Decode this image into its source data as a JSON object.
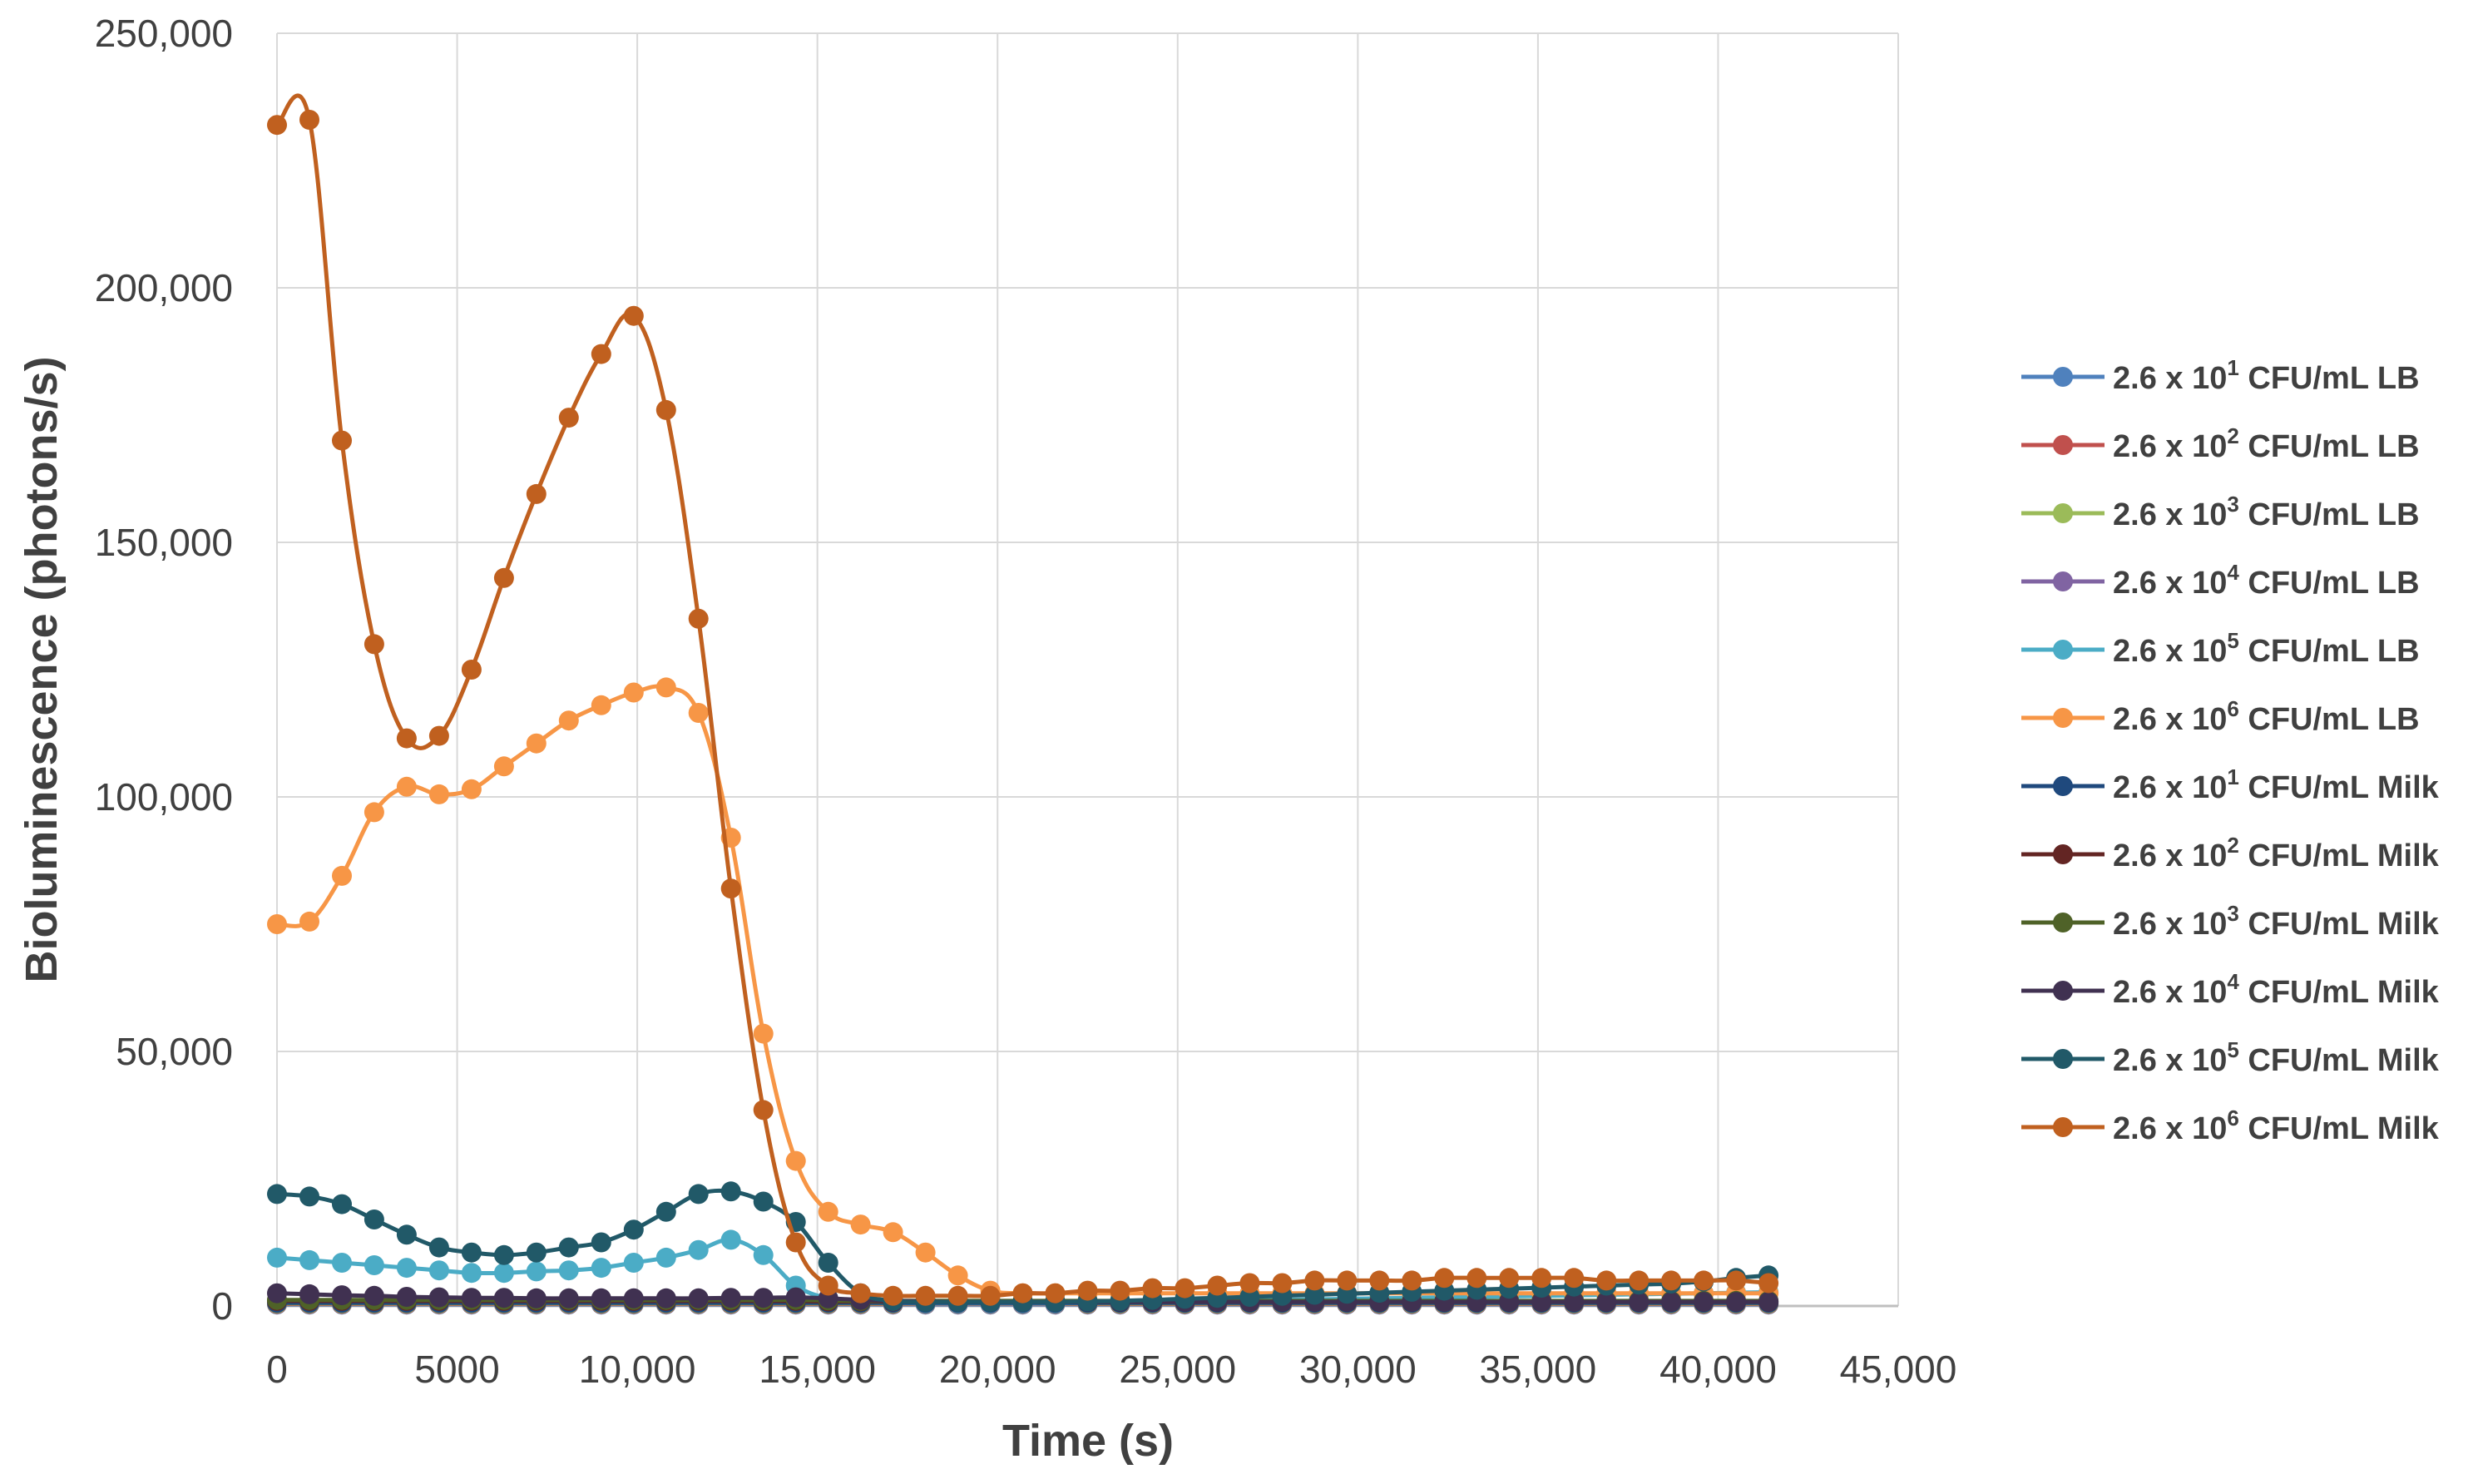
{
  "chart_data": {
    "type": "line",
    "xlabel": "Time (s)",
    "ylabel": "Bioluminescence (photons/s)",
    "xlim": [
      0,
      45000
    ],
    "ylim": [
      0,
      250000
    ],
    "x_ticks": [
      "0",
      "5000",
      "10,000",
      "15,000",
      "20,000",
      "25,000",
      "30,000",
      "35,000",
      "40,000",
      "45,000"
    ],
    "y_ticks": [
      "0",
      "50,000",
      "100,000",
      "150,000",
      "200,000",
      "250,000"
    ],
    "grid": true,
    "legend_position": "right",
    "x": [
      0,
      900,
      1800,
      2700,
      3600,
      4500,
      5400,
      6300,
      7200,
      8100,
      9000,
      9900,
      10800,
      11700,
      12600,
      13500,
      14400,
      15300,
      16200,
      17100,
      18000,
      18900,
      19800,
      20700,
      21600,
      22500,
      23400,
      24300,
      25200,
      26100,
      27000,
      27900,
      28800,
      29700,
      30600,
      31500,
      32400,
      33300,
      34200,
      35100,
      36000,
      36900,
      37800,
      38700,
      39600,
      40500,
      41400
    ],
    "series": [
      {
        "name_parts": [
          "2.6 x 10",
          "1",
          " CFU/mL LB"
        ],
        "color": "#4f81bd",
        "values": [
          300,
          300,
          300,
          300,
          300,
          300,
          300,
          300,
          300,
          300,
          300,
          300,
          300,
          300,
          300,
          300,
          300,
          300,
          300,
          300,
          300,
          300,
          300,
          300,
          300,
          300,
          300,
          300,
          300,
          300,
          300,
          300,
          300,
          300,
          300,
          300,
          300,
          300,
          300,
          300,
          300,
          300,
          300,
          300,
          300,
          300,
          300
        ]
      },
      {
        "name_parts": [
          "2.6 x 10",
          "2",
          " CFU/mL LB"
        ],
        "color": "#c0504d",
        "values": [
          400,
          400,
          400,
          400,
          400,
          400,
          400,
          400,
          400,
          400,
          400,
          400,
          400,
          400,
          400,
          400,
          400,
          400,
          400,
          400,
          400,
          400,
          400,
          400,
          400,
          400,
          400,
          400,
          400,
          400,
          400,
          400,
          400,
          400,
          400,
          400,
          400,
          400,
          400,
          400,
          400,
          400,
          400,
          400,
          400,
          400,
          400
        ]
      },
      {
        "name_parts": [
          "2.6 x 10",
          "3",
          " CFU/mL LB"
        ],
        "color": "#9bbb59",
        "values": [
          500,
          500,
          500,
          500,
          500,
          500,
          500,
          500,
          500,
          500,
          500,
          500,
          500,
          500,
          500,
          500,
          500,
          500,
          500,
          500,
          500,
          500,
          500,
          500,
          500,
          500,
          500,
          500,
          500,
          500,
          500,
          500,
          500,
          500,
          500,
          500,
          500,
          500,
          500,
          500,
          500,
          500,
          500,
          500,
          500,
          500,
          500
        ]
      },
      {
        "name_parts": [
          "2.6 x 10",
          "4",
          " CFU/mL LB"
        ],
        "color": "#8064a2",
        "values": [
          800,
          800,
          800,
          800,
          800,
          800,
          800,
          800,
          800,
          800,
          800,
          800,
          800,
          800,
          800,
          800,
          800,
          700,
          700,
          700,
          700,
          700,
          700,
          700,
          700,
          700,
          700,
          700,
          700,
          700,
          700,
          700,
          700,
          700,
          700,
          700,
          700,
          700,
          700,
          700,
          700,
          700,
          700,
          700,
          700,
          700,
          700
        ]
      },
      {
        "name_parts": [
          "2.6 x 10",
          "5",
          " CFU/mL LB"
        ],
        "color": "#4bacc6",
        "values": [
          9500,
          9000,
          8500,
          8000,
          7500,
          7000,
          6500,
          6500,
          6800,
          7000,
          7500,
          8500,
          9500,
          11000,
          13000,
          10000,
          4000,
          1500,
          800,
          600,
          500,
          500,
          500,
          500,
          500,
          600,
          700,
          800,
          900,
          1000,
          1100,
          1200,
          1300,
          1400,
          1500,
          1600,
          1700,
          1800,
          1900,
          2000,
          2100,
          2200,
          2300,
          2400,
          2500,
          2600,
          2700
        ]
      },
      {
        "name_parts": [
          "2.6 x 10",
          "6",
          " CFU/mL LB"
        ],
        "color": "#f79646",
        "values": [
          75000,
          75500,
          84500,
          97000,
          102000,
          100500,
          101500,
          106000,
          110500,
          115000,
          118000,
          120500,
          121500,
          116500,
          92000,
          53500,
          28500,
          18500,
          16000,
          14500,
          10500,
          6000,
          3000,
          2500,
          2500,
          2500,
          2500,
          2500,
          2500,
          2500,
          2500,
          2500,
          2500,
          2500,
          2500,
          2500,
          2500,
          2500,
          2500,
          2500,
          2500,
          2500,
          2500,
          2500,
          2500,
          2500,
          2500
        ]
      },
      {
        "name_parts": [
          "2.6 x 10",
          "1",
          " CFU/mL Milk"
        ],
        "color": "#1f497d",
        "values": [
          600,
          600,
          600,
          600,
          600,
          600,
          600,
          600,
          600,
          600,
          600,
          600,
          600,
          600,
          600,
          600,
          600,
          600,
          600,
          600,
          600,
          600,
          600,
          600,
          600,
          600,
          600,
          600,
          600,
          600,
          600,
          600,
          600,
          600,
          600,
          600,
          600,
          600,
          600,
          600,
          600,
          600,
          600,
          600,
          600,
          600,
          600
        ]
      },
      {
        "name_parts": [
          "2.6 x 10",
          "2",
          " CFU/mL Milk"
        ],
        "color": "#632523",
        "values": [
          1000,
          1000,
          1000,
          1000,
          1000,
          1000,
          1000,
          1000,
          1000,
          1000,
          1000,
          1000,
          1000,
          1000,
          1000,
          1000,
          1000,
          900,
          900,
          900,
          900,
          900,
          900,
          900,
          900,
          900,
          900,
          900,
          900,
          900,
          900,
          900,
          900,
          900,
          900,
          900,
          900,
          900,
          900,
          900,
          900,
          900,
          900,
          900,
          900,
          900,
          900
        ]
      },
      {
        "name_parts": [
          "2.6 x 10",
          "3",
          " CFU/mL Milk"
        ],
        "color": "#4f6228",
        "values": [
          1200,
          1200,
          1200,
          1200,
          1200,
          1200,
          1200,
          1200,
          1200,
          1200,
          1200,
          1200,
          1200,
          1200,
          1200,
          1200,
          1200,
          1100,
          1000,
          1000,
          1000,
          1000,
          1000,
          1000,
          1000,
          1000,
          1000,
          1000,
          1000,
          1000,
          1000,
          1000,
          1000,
          1000,
          1000,
          1000,
          1000,
          1000,
          1000,
          1000,
          1000,
          1000,
          1000,
          1000,
          1000,
          1000,
          1000
        ]
      },
      {
        "name_parts": [
          "2.6 x 10",
          "4",
          " CFU/mL Milk"
        ],
        "color": "#403151",
        "values": [
          2500,
          2300,
          2100,
          2000,
          1800,
          1700,
          1600,
          1600,
          1500,
          1500,
          1500,
          1500,
          1500,
          1500,
          1600,
          1600,
          1700,
          1500,
          1200,
          1000,
          900,
          800,
          800,
          800,
          800,
          800,
          800,
          800,
          800,
          800,
          800,
          800,
          800,
          800,
          800,
          800,
          800,
          800,
          800,
          800,
          800,
          800,
          800,
          800,
          800,
          800,
          800
        ]
      },
      {
        "name_parts": [
          "2.6 x 10",
          "5",
          " CFU/mL Milk"
        ],
        "color": "#215968",
        "values": [
          22000,
          21500,
          20000,
          17000,
          14000,
          11500,
          10500,
          10000,
          10500,
          11500,
          12500,
          15000,
          18500,
          22000,
          22500,
          20500,
          16500,
          8500,
          2500,
          1000,
          800,
          800,
          800,
          800,
          800,
          900,
          1000,
          1200,
          1400,
          1600,
          1800,
          2000,
          2200,
          2400,
          2600,
          2800,
          3000,
          3200,
          3400,
          3600,
          3800,
          4000,
          4200,
          4400,
          4800,
          5500,
          6000
        ]
      },
      {
        "name_parts": [
          "2.6 x 10",
          "6",
          " CFU/mL Milk"
        ],
        "color": "#c0601f",
        "values": [
          232000,
          233000,
          170000,
          130000,
          111500,
          112000,
          125000,
          143000,
          159500,
          174500,
          187000,
          194500,
          176000,
          135000,
          82000,
          38500,
          12500,
          4000,
          2500,
          2000,
          2000,
          2000,
          2000,
          2500,
          2500,
          3000,
          3000,
          3500,
          3500,
          4000,
          4500,
          4500,
          5000,
          5000,
          5000,
          5000,
          5500,
          5500,
          5500,
          5500,
          5500,
          5000,
          5000,
          5000,
          5000,
          5000,
          4500
        ]
      }
    ]
  }
}
